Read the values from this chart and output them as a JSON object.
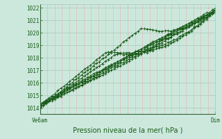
{
  "title": "Pression niveau de la mer( hPa )",
  "xlabel_left": "Ve6am",
  "xlabel_right": "Dim",
  "ylim": [
    1013.5,
    1022.3
  ],
  "yticks": [
    1014,
    1015,
    1016,
    1017,
    1018,
    1019,
    1020,
    1021,
    1022
  ],
  "bg_color": "#cce8dd",
  "grid_color_h": "#a8c8b8",
  "grid_color_v": "#e8b8b8",
  "line_color": "#1a5c1a",
  "axes_color": "#336633"
}
